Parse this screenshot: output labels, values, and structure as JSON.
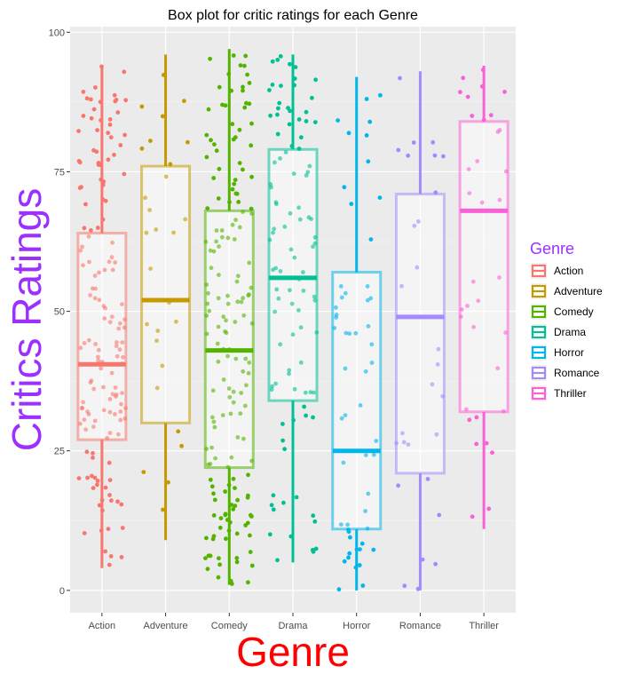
{
  "chart_data": {
    "type": "boxplot",
    "title": "Box plot for critic ratings for each Genre",
    "xlabel": "Genre",
    "ylabel": "Critics Ratings",
    "xlabel_color": "#ff0000",
    "ylabel_color": "#9b30ff",
    "ylim": [
      -4,
      101
    ],
    "yticks": [
      0,
      25,
      50,
      75,
      100
    ],
    "grid": true,
    "legend": {
      "title": "Genre",
      "title_color": "#9b30ff",
      "placement": "right"
    },
    "categories": [
      "Action",
      "Adventure",
      "Comedy",
      "Drama",
      "Horror",
      "Romance",
      "Thriller"
    ],
    "colors": [
      "#f8766d",
      "#c49a00",
      "#53b400",
      "#00c094",
      "#00b6eb",
      "#a58aff",
      "#fb61d7"
    ],
    "boxes": [
      {
        "q1": 27,
        "median": 40.5,
        "q3": 64,
        "whisker_low": 4,
        "whisker_high": 94
      },
      {
        "q1": 30,
        "median": 52,
        "q3": 76,
        "whisker_low": 9,
        "whisker_high": 96
      },
      {
        "q1": 22,
        "median": 43,
        "q3": 68,
        "whisker_low": 1,
        "whisker_high": 97
      },
      {
        "q1": 34,
        "median": 56,
        "q3": 79,
        "whisker_low": 5,
        "whisker_high": 96
      },
      {
        "q1": 11,
        "median": 25,
        "q3": 57,
        "whisker_low": 0,
        "whisker_high": 92
      },
      {
        "q1": 21,
        "median": 49,
        "q3": 71,
        "whisker_low": 0,
        "whisker_high": 93
      },
      {
        "q1": 32,
        "median": 68,
        "q3": 84,
        "whisker_low": 11,
        "whisker_high": 94
      }
    ],
    "points_per_genre": [
      150,
      28,
      170,
      100,
      55,
      28,
      35
    ]
  }
}
